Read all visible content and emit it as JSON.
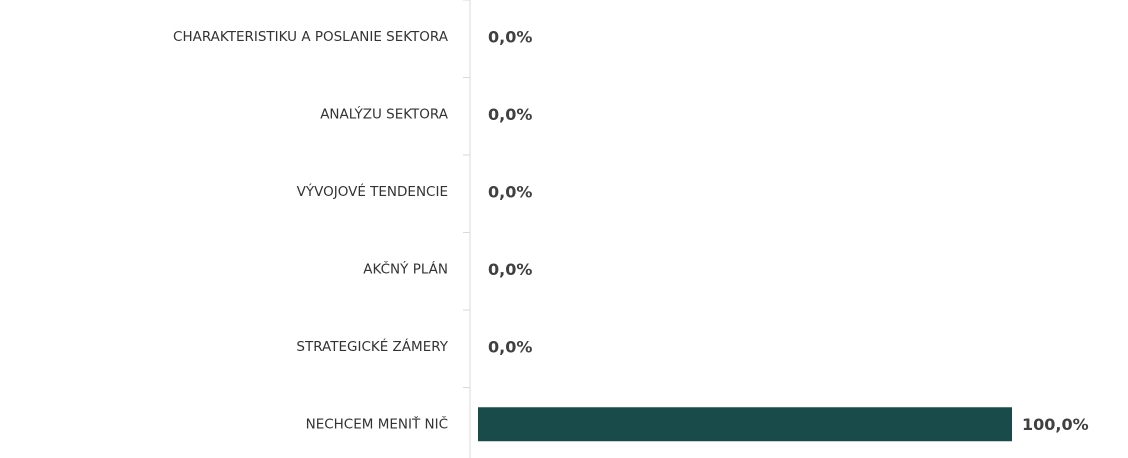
{
  "chart_data": {
    "type": "bar",
    "orientation": "horizontal",
    "categories": [
      "CHARAKTERISTIKU A POSLANIE SEKTORA",
      "ANALÝZU SEKTORA",
      "VÝVOJOVÉ TENDENCIE",
      "AKČNÝ PLÁN",
      "STRATEGICKÉ ZÁMERY",
      "NECHCEM MENIŤ NIČ"
    ],
    "values": [
      0,
      0,
      0,
      0,
      0,
      100
    ],
    "value_labels": [
      "0,0%",
      "0,0%",
      "0,0%",
      "0,0%",
      "0,0%",
      "100,0%"
    ],
    "color": "#1a4b4b"
  }
}
